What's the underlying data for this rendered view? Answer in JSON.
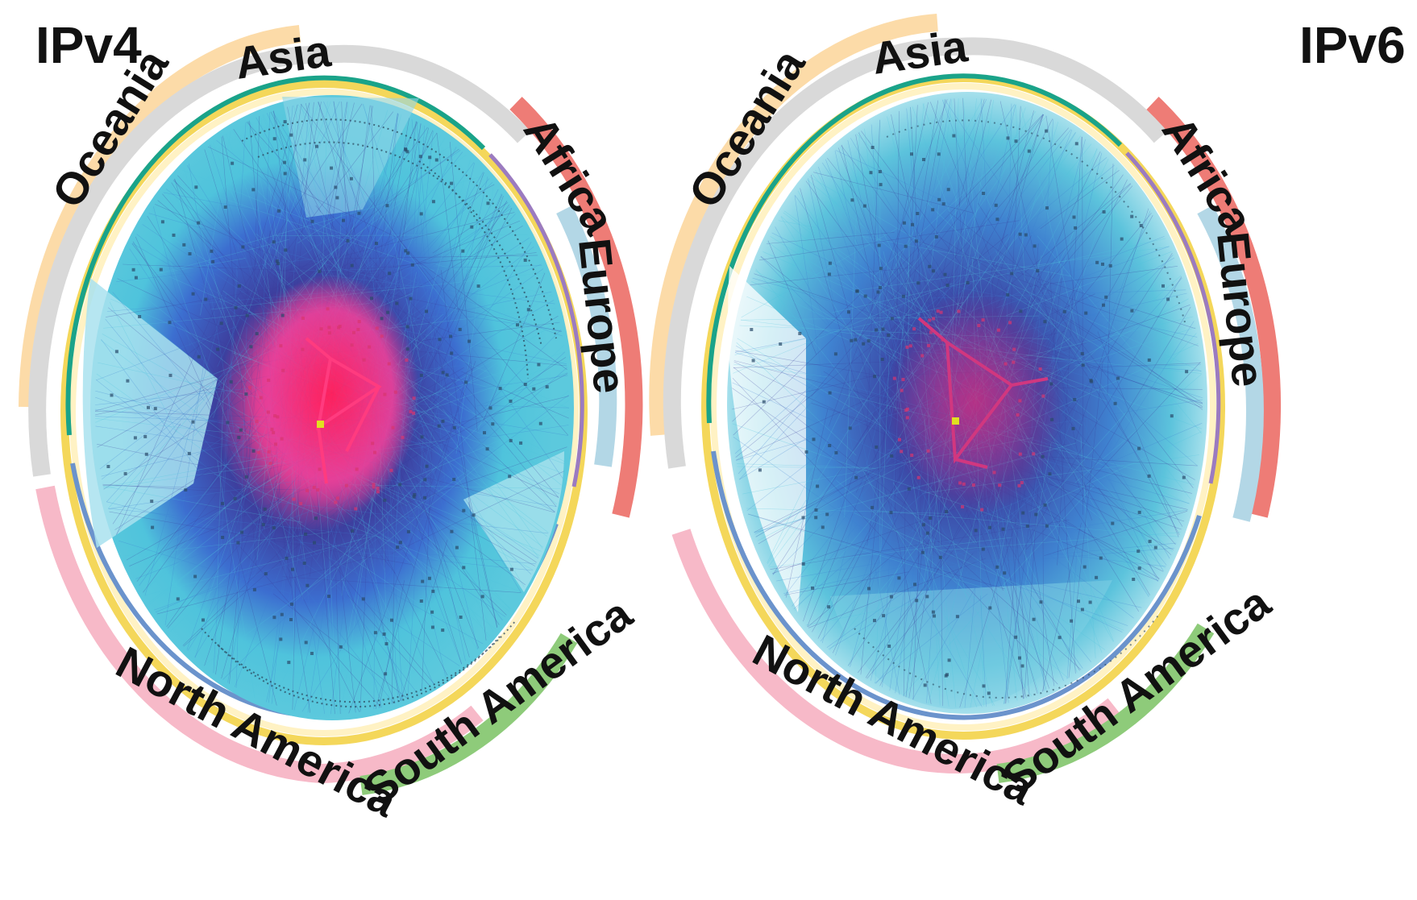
{
  "panels": [
    {
      "title": "IPv4",
      "regions": [
        {
          "name": "Asia",
          "color": "#d9d9d9"
        },
        {
          "name": "Oceania",
          "color": "#fcdba8"
        },
        {
          "name": "Africa",
          "color": "#ee7c76"
        },
        {
          "name": "Europe",
          "color": "#b3d7e6"
        },
        {
          "name": "North America",
          "color": "#f7b9c8"
        },
        {
          "name": "South America",
          "color": "#8ecb7a"
        }
      ]
    },
    {
      "title": "IPv6",
      "regions": [
        {
          "name": "Asia",
          "color": "#d9d9d9"
        },
        {
          "name": "Oceania",
          "color": "#fcdba8"
        },
        {
          "name": "Africa",
          "color": "#ee7c76"
        },
        {
          "name": "Europe",
          "color": "#b3d7e6"
        },
        {
          "name": "North America",
          "color": "#f7b9c8"
        },
        {
          "name": "South America",
          "color": "#8ecb7a"
        }
      ]
    }
  ],
  "colors": {
    "edge_light": "#4fc3dc",
    "edge_mid": "#3c7fd0",
    "edge_dark": "#3a3f9e",
    "core": "#e8306f",
    "core_node": "#e0e020",
    "ring_teal": "#1aa389",
    "ring_blue": "#6b93cc",
    "ring_yellow": "#f4d75a",
    "ring_purple": "#9b7bc0"
  }
}
